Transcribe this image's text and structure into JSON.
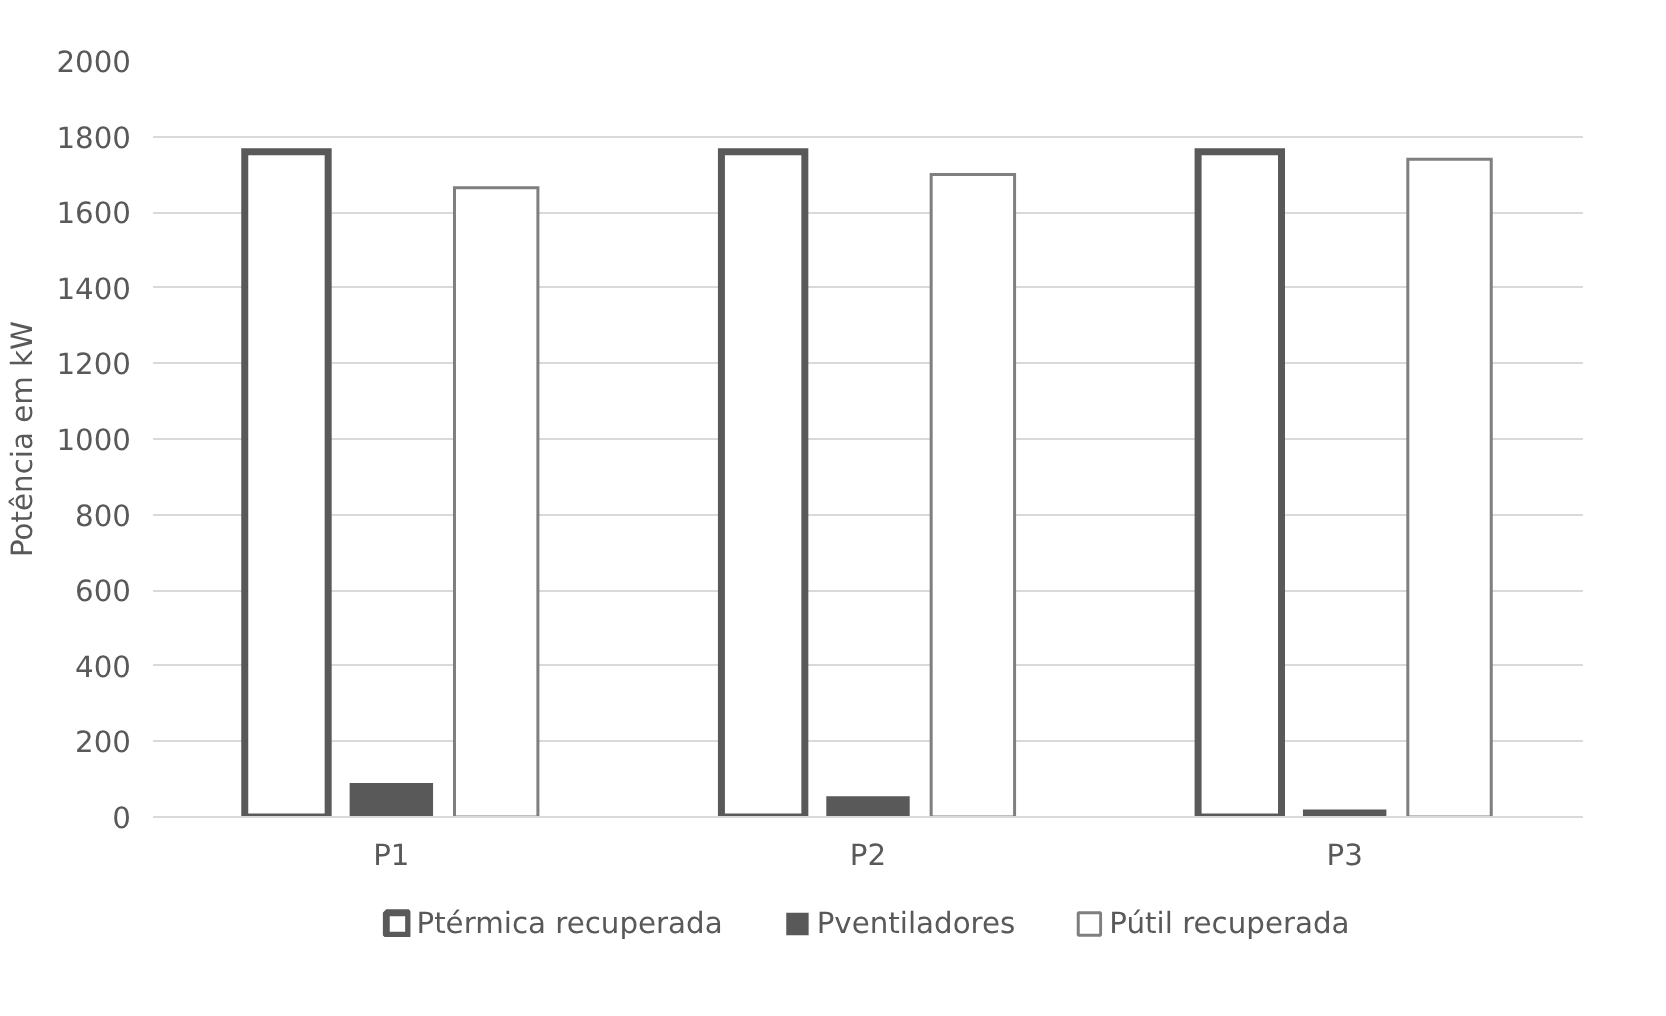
{
  "chart_data": {
    "type": "bar",
    "ylabel": "Potência em kW",
    "categories": [
      "P1",
      "P2",
      "P3"
    ],
    "series": [
      {
        "name": "Ptérmica recuperada",
        "color": "#ffffff",
        "values": [
          1760,
          1760,
          1760
        ]
      },
      {
        "name": "Pventiladores",
        "color": "#595959",
        "values": [
          90,
          55,
          20
        ]
      },
      {
        "name": "Pútil recuperada",
        "color": "#ffffff",
        "values": [
          1665,
          1700,
          1740
        ]
      }
    ],
    "ylim": [
      0,
      2000
    ],
    "yticks": [
      0,
      200,
      400,
      600,
      800,
      1000,
      1200,
      1400,
      1600,
      1800,
      2000
    ],
    "grid": "y",
    "legend": "bottom"
  }
}
